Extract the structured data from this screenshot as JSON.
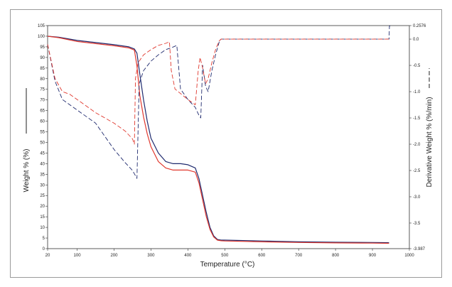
{
  "chart_data": {
    "type": "line",
    "xlabel": "Temperature (°C)",
    "ylabel_left": "Weight % (%)",
    "ylabel_right": "Derivative Weight % (%/min)",
    "xlim": [
      20,
      1000
    ],
    "ylim_left": [
      0,
      105
    ],
    "ylim_right": [
      -3.987,
      0.2576
    ],
    "x_ticks": [
      20,
      100,
      200,
      300,
      400,
      500,
      600,
      700,
      800,
      900,
      1000
    ],
    "y_left_ticks": [
      0,
      5,
      10,
      15,
      20,
      25,
      30,
      35,
      40,
      45,
      50,
      55,
      60,
      65,
      70,
      75,
      80,
      85,
      90,
      95,
      100,
      105
    ],
    "y_right_ticks": [
      0.2576,
      0.0,
      -0.5,
      -1.0,
      -1.5,
      -2.0,
      -2.5,
      -3.0,
      -3.5,
      -3.987
    ],
    "y_right_tick_labels": [
      "0.2576",
      "0.0",
      "-0.5",
      "-1.0",
      "-1.5",
      "-2.0",
      "-2.5",
      "-3.0",
      "-3.5",
      "-3.987"
    ],
    "grid": false,
    "series": [
      {
        "axis": "left",
        "style": "solid",
        "color": "#1f2a6e",
        "x": [
          20,
          50,
          100,
          150,
          200,
          240,
          255,
          262,
          270,
          280,
          290,
          300,
          320,
          340,
          360,
          380,
          400,
          420,
          430,
          440,
          450,
          460,
          470,
          480,
          490,
          500,
          600,
          700,
          800,
          900,
          945
        ],
        "y": [
          100,
          99.5,
          98,
          97,
          96,
          95,
          94,
          92,
          82,
          70,
          60,
          52,
          45,
          41,
          40,
          40,
          39.5,
          38,
          33,
          25,
          17,
          10,
          6,
          4.3,
          4,
          4,
          3.6,
          3.2,
          3,
          2.9,
          2.8
        ]
      },
      {
        "axis": "left",
        "style": "solid",
        "color": "#e0382e",
        "x": [
          20,
          50,
          100,
          150,
          200,
          240,
          255,
          262,
          270,
          280,
          290,
          300,
          320,
          340,
          360,
          380,
          400,
          420,
          430,
          440,
          450,
          460,
          470,
          480,
          490,
          500,
          600,
          700,
          800,
          900,
          945
        ],
        "y": [
          100,
          99.3,
          97.5,
          96.5,
          95.5,
          94.5,
          93.5,
          86,
          72,
          62,
          54,
          48,
          41,
          38,
          37,
          37,
          37,
          36,
          31,
          23,
          15,
          9,
          5.5,
          4,
          3.7,
          3.6,
          3.2,
          2.9,
          2.7,
          2.6,
          2.5
        ]
      },
      {
        "axis": "right",
        "style": "dashed",
        "color": "#1f2a6e",
        "x": [
          20,
          40,
          60,
          80,
          100,
          150,
          200,
          230,
          250,
          258,
          262,
          268,
          280,
          300,
          320,
          340,
          360,
          370,
          380,
          400,
          420,
          430,
          435,
          440,
          448,
          455,
          465,
          475,
          485,
          490,
          500,
          600,
          700,
          800,
          900,
          940,
          945,
          946,
          948
        ],
        "y": [
          -0.1,
          -0.8,
          -1.15,
          -1.25,
          -1.35,
          -1.6,
          -2.1,
          -2.35,
          -2.5,
          -2.6,
          -2.65,
          -0.85,
          -0.6,
          -0.42,
          -0.3,
          -0.2,
          -0.15,
          -0.12,
          -0.95,
          -1.15,
          -1.3,
          -1.45,
          -1.5,
          -0.5,
          -0.9,
          -1.0,
          -0.6,
          -0.3,
          -0.05,
          0.0,
          0.0,
          0.0,
          0.0,
          0.0,
          0.0,
          0.0,
          0.0,
          0.25,
          0.25
        ]
      },
      {
        "axis": "right",
        "style": "dashed",
        "color": "#e0382e",
        "x": [
          20,
          40,
          60,
          80,
          100,
          150,
          200,
          230,
          250,
          255,
          258,
          265,
          280,
          300,
          320,
          340,
          350,
          355,
          365,
          400,
          420,
          428,
          433,
          440,
          448,
          455,
          465,
          475,
          485,
          490,
          500,
          600,
          700,
          800,
          900,
          945
        ],
        "y": [
          -0.1,
          -0.75,
          -1.0,
          -1.05,
          -1.15,
          -1.4,
          -1.6,
          -1.75,
          -1.9,
          -2.0,
          -0.75,
          -0.45,
          -0.3,
          -0.2,
          -0.12,
          -0.08,
          -0.05,
          -0.6,
          -0.95,
          -1.15,
          -1.25,
          -0.6,
          -0.35,
          -0.55,
          -0.85,
          -0.75,
          -0.45,
          -0.2,
          -0.03,
          0.0,
          0.0,
          0.0,
          0.0,
          0.0,
          0.0,
          0.0
        ]
      }
    ]
  }
}
